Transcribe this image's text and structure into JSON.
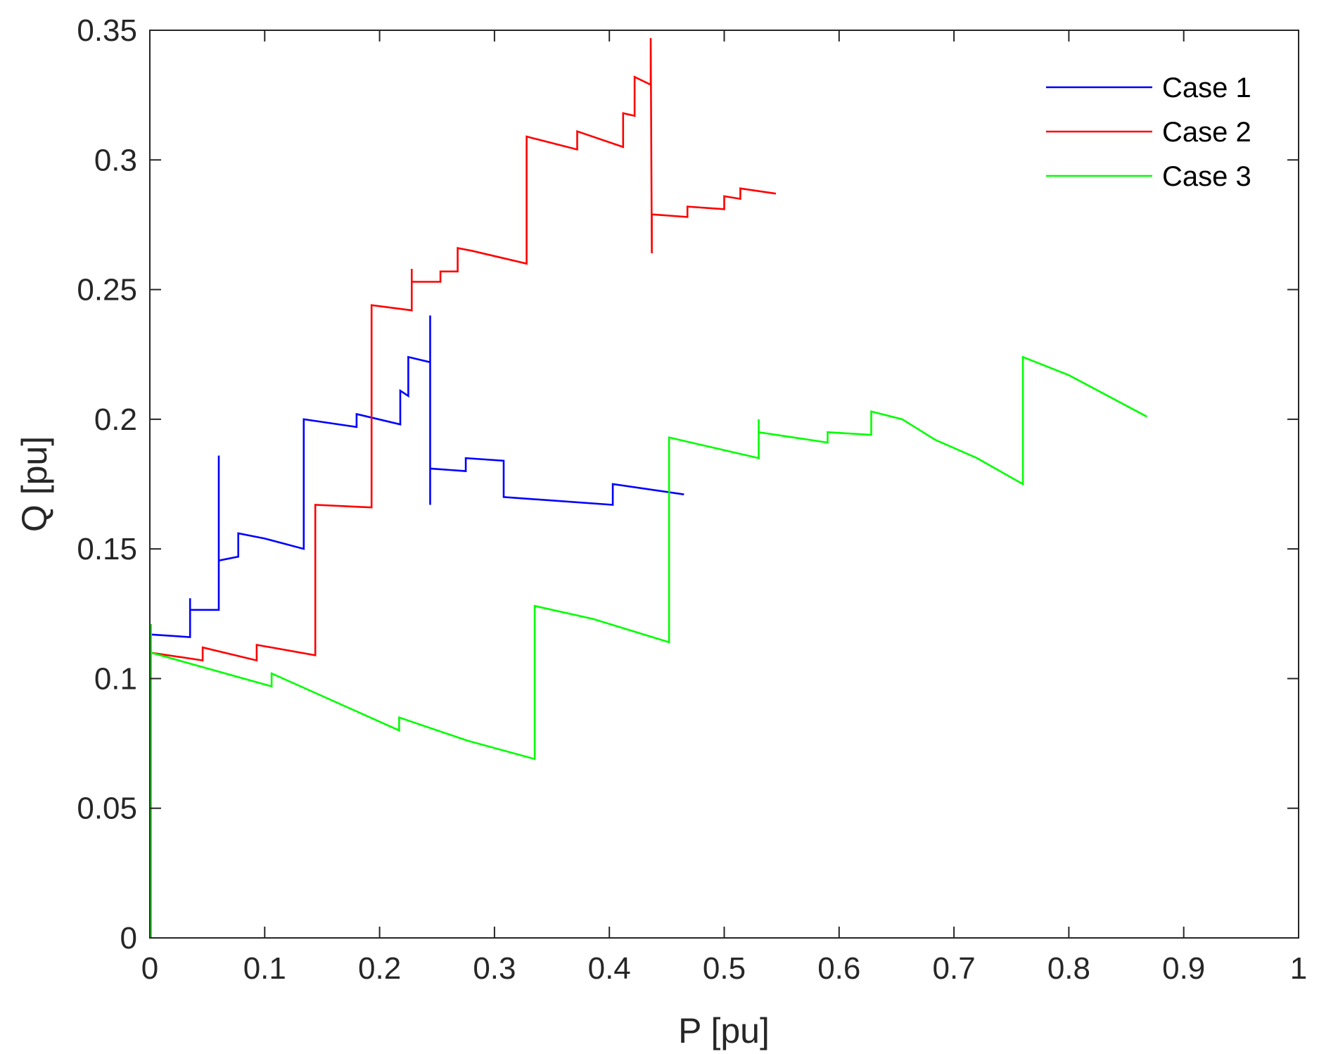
{
  "chart_data": {
    "type": "line",
    "title": "",
    "xlabel": "P [pu]",
    "ylabel": "Q [pu]",
    "xlim": [
      0,
      1
    ],
    "ylim": [
      0,
      0.35
    ],
    "xticks": [
      0,
      0.1,
      0.2,
      0.3,
      0.4,
      0.5,
      0.6,
      0.7,
      0.8,
      0.9,
      1
    ],
    "xtick_labels": [
      "0",
      "0.1",
      "0.2",
      "0.3",
      "0.4",
      "0.5",
      "0.6",
      "0.7",
      "0.8",
      "0.9",
      "1"
    ],
    "yticks": [
      0,
      0.05,
      0.1,
      0.15,
      0.2,
      0.25,
      0.3,
      0.35
    ],
    "ytick_labels": [
      "0",
      "0.05",
      "0.1",
      "0.15",
      "0.2",
      "0.25",
      "0.3",
      "0.35"
    ],
    "grid": false,
    "legend_position": "top-right",
    "series": [
      {
        "name": "Case 1",
        "color": "#0000ff",
        "x": [
          0.001,
          0.035,
          0.035,
          0.035,
          0.035,
          0.06,
          0.06,
          0.06,
          0.06,
          0.077,
          0.077,
          0.1,
          0.134,
          0.134,
          0.18,
          0.18,
          0.218,
          0.218,
          0.225,
          0.225,
          0.244,
          0.244,
          0.244,
          0.244,
          0.275,
          0.275,
          0.308,
          0.308,
          0.403,
          0.403,
          0.465
        ],
        "y": [
          0.117,
          0.116,
          0.131,
          0.127,
          0.1265,
          0.1265,
          0.186,
          0.145,
          0.1455,
          0.147,
          0.156,
          0.154,
          0.15,
          0.2,
          0.197,
          0.202,
          0.198,
          0.211,
          0.209,
          0.224,
          0.222,
          0.24,
          0.167,
          0.181,
          0.18,
          0.185,
          0.184,
          0.17,
          0.167,
          0.175,
          0.171
        ]
      },
      {
        "name": "Case 2",
        "color": "#ff0000",
        "x": [
          0.001,
          0.046,
          0.046,
          0.093,
          0.093,
          0.144,
          0.144,
          0.193,
          0.193,
          0.228,
          0.228,
          0.228,
          0.232,
          0.253,
          0.253,
          0.268,
          0.268,
          0.28,
          0.328,
          0.328,
          0.372,
          0.372,
          0.412,
          0.412,
          0.422,
          0.422,
          0.436,
          0.436,
          0.437,
          0.437,
          0.468,
          0.468,
          0.5,
          0.5,
          0.514,
          0.514,
          0.545
        ],
        "y": [
          0.11,
          0.107,
          0.112,
          0.107,
          0.113,
          0.109,
          0.167,
          0.166,
          0.244,
          0.242,
          0.258,
          0.253,
          0.253,
          0.253,
          0.257,
          0.257,
          0.266,
          0.265,
          0.26,
          0.309,
          0.304,
          0.311,
          0.305,
          0.318,
          0.317,
          0.332,
          0.329,
          0.347,
          0.264,
          0.279,
          0.278,
          0.282,
          0.281,
          0.286,
          0.285,
          0.289,
          0.287
        ]
      },
      {
        "name": "Case 3",
        "color": "#00ff00",
        "x": [
          0.001,
          0.001,
          0.001,
          0.001,
          0.106,
          0.106,
          0.217,
          0.217,
          0.277,
          0.335,
          0.335,
          0.386,
          0.452,
          0.452,
          0.53,
          0.53,
          0.53,
          0.59,
          0.59,
          0.628,
          0.628,
          0.655,
          0.684,
          0.72,
          0.76,
          0.76,
          0.8,
          0.868
        ],
        "y": [
          0,
          0.04,
          0.121,
          0.11,
          0.097,
          0.102,
          0.08,
          0.085,
          0.076,
          0.069,
          0.128,
          0.123,
          0.114,
          0.193,
          0.185,
          0.2,
          0.195,
          0.191,
          0.195,
          0.194,
          0.203,
          0.2,
          0.192,
          0.185,
          0.175,
          0.224,
          0.217,
          0.201
        ]
      }
    ]
  }
}
